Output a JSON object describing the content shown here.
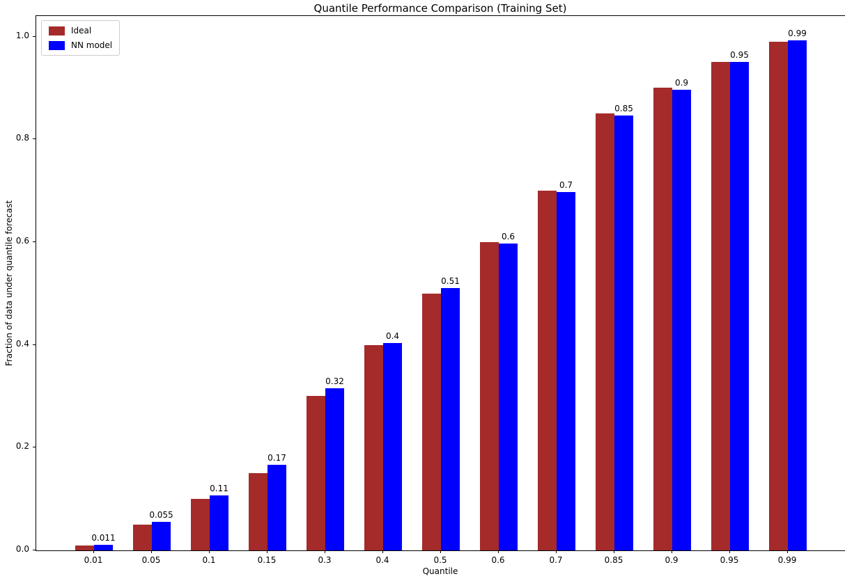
{
  "chart_data": {
    "type": "bar",
    "title": "Quantile Performance Comparison (Training Set)",
    "xlabel": "Quantile",
    "ylabel": "Fraction of data under quantile forecast",
    "categories": [
      "0.01",
      "0.05",
      "0.1",
      "0.15",
      "0.3",
      "0.4",
      "0.5",
      "0.6",
      "0.7",
      "0.85",
      "0.9",
      "0.95",
      "0.99"
    ],
    "series": [
      {
        "name": "Ideal",
        "color": "#a52a2a",
        "values": [
          0.01,
          0.05,
          0.1,
          0.15,
          0.3,
          0.4,
          0.5,
          0.6,
          0.7,
          0.85,
          0.9,
          0.95,
          0.99
        ]
      },
      {
        "name": "NN model",
        "color": "#0000ff",
        "values": [
          0.011,
          0.055,
          0.107,
          0.166,
          0.316,
          0.403,
          0.511,
          0.597,
          0.698,
          0.847,
          0.897,
          0.95,
          0.993
        ]
      }
    ],
    "bar_labels": [
      "0.011",
      "0.055",
      "0.11",
      "0.17",
      "0.32",
      "0.4",
      "0.51",
      "0.6",
      "0.7",
      "0.85",
      "0.9",
      "0.95",
      "0.99"
    ],
    "yticks": [
      0.0,
      0.2,
      0.4,
      0.6,
      0.8,
      1.0
    ],
    "ytick_labels": [
      "0.0",
      "0.2",
      "0.4",
      "0.6",
      "0.8",
      "1.0"
    ],
    "ylim": [
      0,
      1.04
    ],
    "grid": false,
    "legend_position": "upper-left"
  }
}
